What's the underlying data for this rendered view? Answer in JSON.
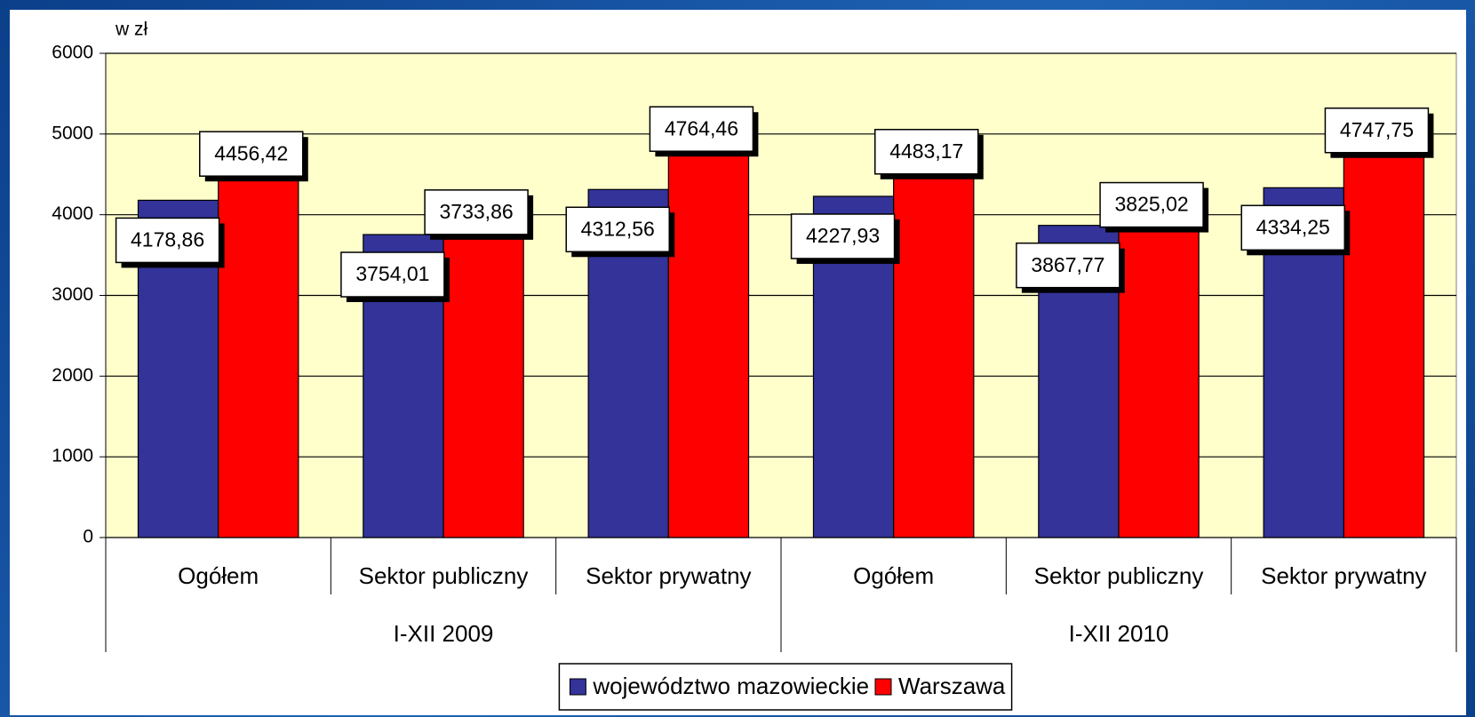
{
  "chart_data": {
    "type": "bar",
    "y_label": "w zł",
    "categories": [
      "Ogółem",
      "Sektor publiczny",
      "Sektor prywatny",
      "Ogółem",
      "Sektor publiczny",
      "Sektor prywatny"
    ],
    "groups": [
      "I-XII 2009",
      "I-XII 2010"
    ],
    "series": [
      {
        "name": "województwo mazowieckie",
        "color": "#333399",
        "values": [
          4178.86,
          3754.01,
          4312.56,
          4227.93,
          3867.77,
          4334.25
        ],
        "value_labels": [
          "4178,86",
          "3754,01",
          "4312,56",
          "4227,93",
          "3867,77",
          "4334,25"
        ]
      },
      {
        "name": "Warszawa",
        "color": "#ff0000",
        "values": [
          4456.42,
          3733.86,
          4764.46,
          4483.17,
          3825.02,
          4747.75
        ],
        "value_labels": [
          "4456,42",
          "3733,86",
          "4764,46",
          "4483,17",
          "3825,02",
          "4747,75"
        ]
      }
    ],
    "ylim": [
      0,
      6000
    ],
    "yticks": [
      0,
      1000,
      2000,
      3000,
      4000,
      5000,
      6000
    ],
    "grid": true,
    "plot_background": "#ffffcc",
    "legend": "bottom"
  }
}
